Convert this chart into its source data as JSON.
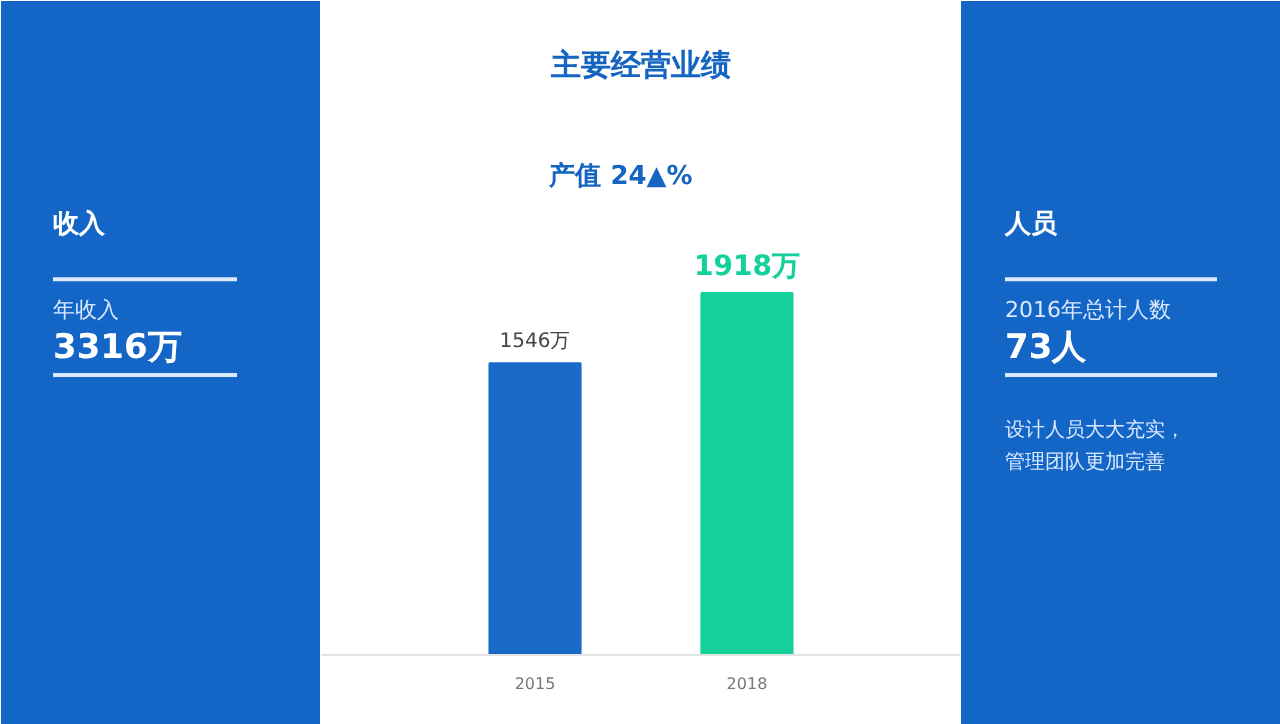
{
  "chart_data": [
    {
      "type": "other",
      "title": "收入",
      "annotations": [
        "年收入",
        "3316万"
      ],
      "color": "#1366c6"
    },
    {
      "type": "bar",
      "title": "主要经营业绩",
      "subtitle": "产值 24▲%",
      "categories": [
        "2015",
        "2018"
      ],
      "colors": [
        "#1a6ac8",
        "#14d09a"
      ],
      "values": [
        1546,
        1918
      ],
      "value_labels": [
        "1546万",
        "1918万"
      ],
      "grid": false
    },
    {
      "type": "other",
      "title": "人员",
      "annotations": [
        "2016年总计人数",
        "73人",
        "设计人员大大充实，",
        "管理团队更加完善"
      ],
      "color": "#1366c6"
    }
  ]
}
